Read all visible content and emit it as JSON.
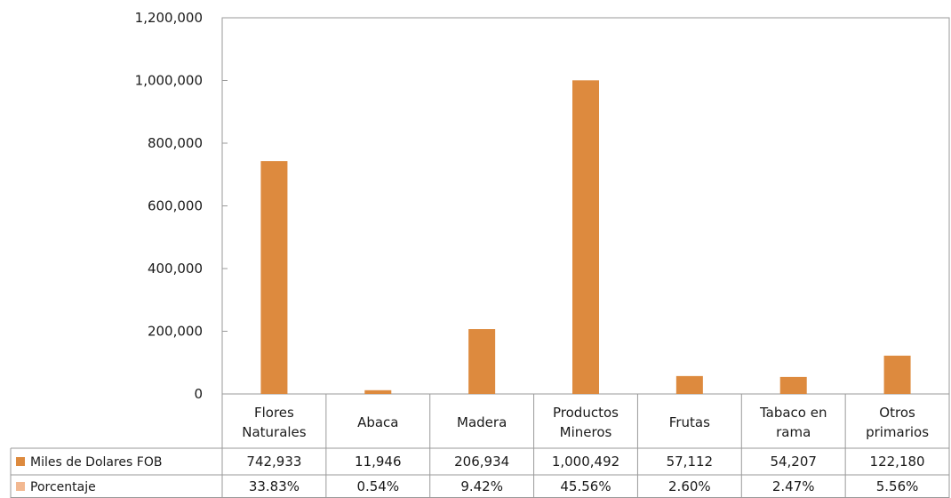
{
  "colors": {
    "series_primary": "#dd8a3e",
    "series_secondary": "#f2b891",
    "gridline": "#b0b0b0",
    "border": "#9a9a9a"
  },
  "chart_data": {
    "type": "bar",
    "title": "",
    "xlabel": "",
    "ylabel": "",
    "ylim": [
      0,
      1200000
    ],
    "yticks": [
      "0",
      "200,000",
      "400,000",
      "600,000",
      "800,000",
      "1,000,000",
      "1,200,000"
    ],
    "ytick_values": [
      0,
      200000,
      400000,
      600000,
      800000,
      1000000,
      1200000
    ],
    "grid": false,
    "legend": "data-table",
    "categories": [
      [
        "Flores",
        "Naturales"
      ],
      [
        "Abaca"
      ],
      [
        "Madera"
      ],
      [
        "Productos",
        "Mineros"
      ],
      [
        "Frutas"
      ],
      [
        "Tabaco en",
        "rama"
      ],
      [
        "Otros",
        "primarios"
      ]
    ],
    "series": [
      {
        "name": "Miles de Dolares FOB",
        "values": [
          742933,
          11946,
          206934,
          1000492,
          57112,
          54207,
          122180
        ],
        "labels": [
          "742,933",
          "11,946",
          "206,934",
          "1,000,492",
          "57,112",
          "54,207",
          "122,180"
        ],
        "plotted": true
      },
      {
        "name": "Porcentaje",
        "values": [
          33.83,
          0.54,
          9.42,
          45.56,
          2.6,
          2.47,
          5.56
        ],
        "labels": [
          "33.83%",
          "0.54%",
          "9.42%",
          "45.56%",
          "2.60%",
          "2.47%",
          "5.56%"
        ],
        "plotted": false
      }
    ]
  }
}
